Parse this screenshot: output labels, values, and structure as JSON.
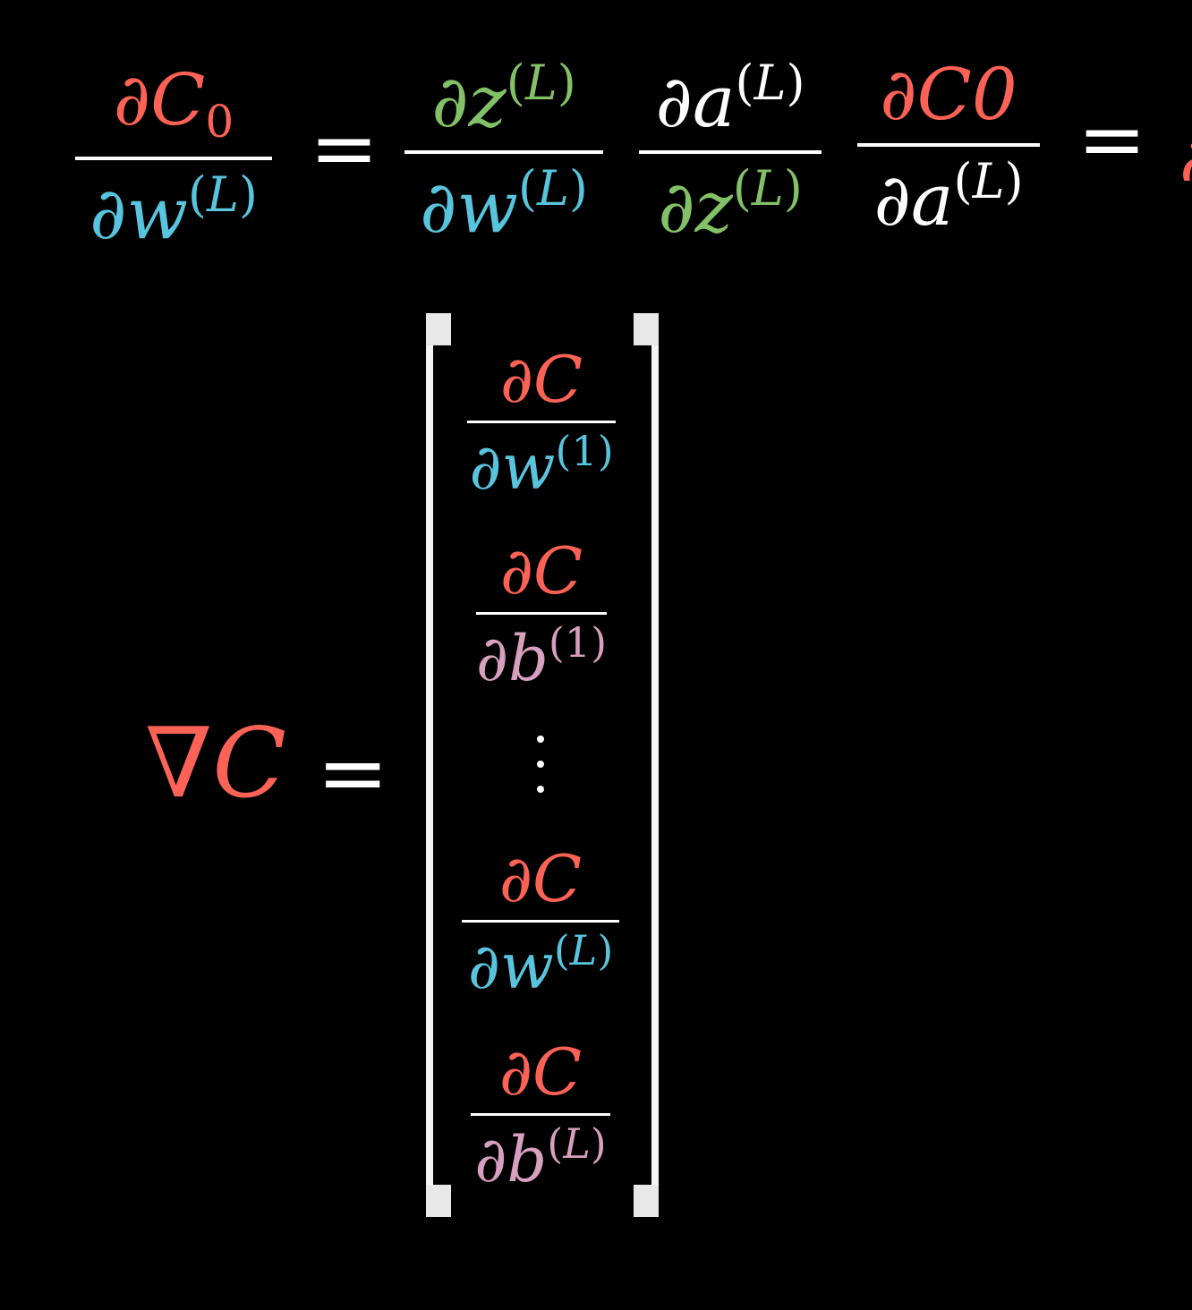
{
  "colors": {
    "cost": "#fc6255",
    "weight": "#58c4dd",
    "z": "#83c167",
    "activation": "#ffffff",
    "bias": "#d8a0bf",
    "text": "#ffffff",
    "background": "#000000"
  },
  "top_equation": {
    "lhs": {
      "num": {
        "partial": "∂",
        "symbol": "C",
        "sub": "0"
      },
      "den": {
        "partial": "∂",
        "symbol": "w",
        "sup_open": "(",
        "sup": "L",
        "sup_close": ")"
      }
    },
    "equals": "=",
    "terms": [
      {
        "num": {
          "partial": "∂",
          "symbol": "z",
          "sup_open": "(",
          "sup": "L",
          "sup_close": ")"
        },
        "den": {
          "partial": "∂",
          "symbol": "w",
          "sup_open": "(",
          "sup": "L",
          "sup_close": ")"
        }
      },
      {
        "num": {
          "partial": "∂",
          "symbol": "a",
          "sup_open": "(",
          "sup": "L",
          "sup_close": ")"
        },
        "den": {
          "partial": "∂",
          "symbol": "z",
          "sup_open": "(",
          "sup": "L",
          "sup_close": ")"
        }
      },
      {
        "num": {
          "partial": "∂",
          "symbol": "C0"
        },
        "den": {
          "partial": "∂",
          "symbol": "a",
          "sup_open": "(",
          "sup": "L",
          "sup_close": ")"
        }
      }
    ],
    "equals_2": "="
  },
  "gradient": {
    "lhs": {
      "nabla": "∇",
      "symbol": "C"
    },
    "equals": "=",
    "entries": [
      {
        "num": "∂C",
        "den_partial": "∂",
        "den_symbol": "w",
        "sup_open": "(",
        "sup": "1",
        "sup_close": ")"
      },
      {
        "num": "∂C",
        "den_partial": "∂",
        "den_symbol": "b",
        "sup_open": "(",
        "sup": "1",
        "sup_close": ")"
      },
      {
        "num": "∂C",
        "den_partial": "∂",
        "den_symbol": "w",
        "sup_open": "(",
        "sup": "L",
        "sup_close": ")"
      },
      {
        "num": "∂C",
        "den_partial": "∂",
        "den_symbol": "b",
        "sup_open": "(",
        "sup": "L",
        "sup_close": ")"
      }
    ],
    "ellipsis": "vdots"
  }
}
